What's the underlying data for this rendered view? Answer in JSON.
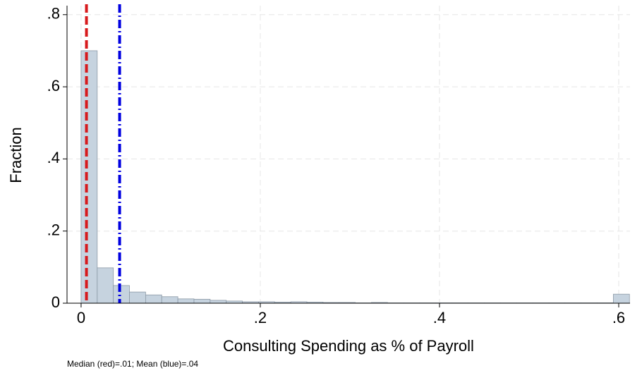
{
  "chart_data": {
    "type": "histogram",
    "x_label": "Consulting Spending as % of Payroll",
    "y_label": "Fraction",
    "note": "Median (red)=.01; Mean (blue)=.04",
    "bins": [
      0,
      0.018,
      0.036,
      0.054,
      0.072,
      0.09,
      0.108,
      0.126,
      0.144,
      0.162,
      0.18,
      0.198,
      0.216,
      0.234,
      0.252,
      0.27,
      0.288,
      0.306,
      0.324,
      0.342,
      0.36,
      0.378,
      0.396,
      0.414,
      0.432,
      0.45,
      0.468,
      0.486,
      0.504,
      0.522,
      0.54,
      0.558,
      0.576,
      0.594,
      0.612
    ],
    "values": [
      0.7,
      0.098,
      0.049,
      0.031,
      0.023,
      0.018,
      0.012,
      0.011,
      0.008,
      0.006,
      0.004,
      0.004,
      0.003,
      0.004,
      0.003,
      0.002,
      0.002,
      0.001,
      0.002,
      0.001,
      0.001,
      0.001,
      0.001,
      0.001,
      0.001,
      0.001,
      0.001,
      0.001,
      0.001,
      0.001,
      0.001,
      0.001,
      0.001,
      0.025
    ],
    "color": "#c6d3df",
    "edge_color": "#8c99a6",
    "reference_lines": [
      {
        "value": 0.006,
        "color": "#d7191c",
        "style": "dash"
      },
      {
        "value": 0.043,
        "color": "#0000e0",
        "style": "dashdot"
      }
    ],
    "xlim": [
      -0.0157,
      0.6126
    ],
    "ylim": [
      0,
      0.825
    ],
    "xticks": [
      0,
      {
        "value": 0.2,
        "label": ".2"
      },
      {
        "value": 0.4,
        "label": ".4"
      },
      {
        "value": 0.6,
        "label": ".6"
      }
    ],
    "yticks": [
      0,
      {
        "value": 0.2,
        "label": ".2"
      },
      {
        "value": 0.4,
        "label": ".4"
      },
      {
        "value": 0.6,
        "label": ".6"
      },
      {
        "value": 0.8,
        "label": ".8"
      }
    ],
    "grid": true
  }
}
